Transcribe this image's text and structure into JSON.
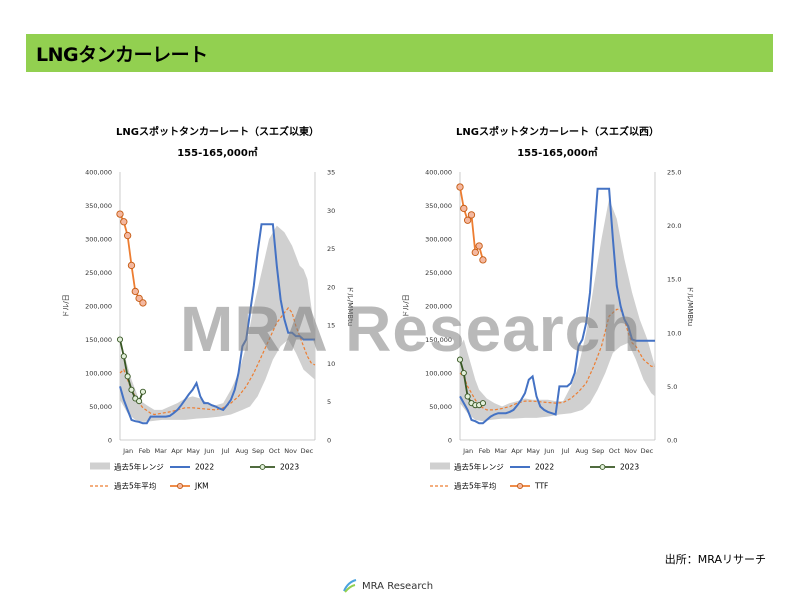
{
  "page": {
    "title": "LNGタンカーレート",
    "source": "出所：MRAリサーチ",
    "watermark": "MRA Research",
    "footer_logo_text": "MRA Research",
    "accent_color": "#92d050"
  },
  "chart_data": [
    {
      "id": "east",
      "type": "line",
      "title": "LNGスポットタンカーレート（スエズ以東）",
      "subtitle": "155-165,000㎥",
      "ylabel": "ドル/日",
      "y2label": "ドル/MMBtu",
      "ylim": [
        0,
        400000
      ],
      "y2lim": [
        0,
        35
      ],
      "yticks": [
        "0",
        "50,000",
        "100,000",
        "150,000",
        "200,000",
        "250,000",
        "300,000",
        "350,000",
        "400,000"
      ],
      "y2ticks": [
        "0",
        "5",
        "10",
        "15",
        "20",
        "25",
        "30",
        "35"
      ],
      "x_labels": [
        "Jan",
        "Feb",
        "Mar",
        "Apr",
        "May",
        "Jun",
        "Jul",
        "Aug",
        "Sep",
        "Oct",
        "Nov",
        "Dec"
      ],
      "week_range": [
        1,
        52
      ],
      "range_low": [
        [
          1,
          60000
        ],
        [
          3,
          40000
        ],
        [
          5,
          30000
        ],
        [
          7,
          27000
        ],
        [
          9,
          28000
        ],
        [
          12,
          30000
        ],
        [
          15,
          30000
        ],
        [
          18,
          30000
        ],
        [
          21,
          32000
        ],
        [
          24,
          33000
        ],
        [
          27,
          35000
        ],
        [
          30,
          38000
        ],
        [
          33,
          45000
        ],
        [
          35,
          50000
        ],
        [
          37,
          65000
        ],
        [
          39,
          90000
        ],
        [
          41,
          120000
        ],
        [
          43,
          140000
        ],
        [
          45,
          150000
        ],
        [
          47,
          130000
        ],
        [
          49,
          105000
        ],
        [
          51,
          95000
        ],
        [
          52,
          90000
        ]
      ],
      "range_high": [
        [
          1,
          120000
        ],
        [
          2,
          130000
        ],
        [
          3,
          110000
        ],
        [
          4,
          90000
        ],
        [
          5,
          75000
        ],
        [
          6,
          60000
        ],
        [
          8,
          52000
        ],
        [
          10,
          45000
        ],
        [
          12,
          45000
        ],
        [
          14,
          50000
        ],
        [
          16,
          55000
        ],
        [
          18,
          62000
        ],
        [
          20,
          65000
        ],
        [
          22,
          62000
        ],
        [
          24,
          55000
        ],
        [
          26,
          52000
        ],
        [
          28,
          55000
        ],
        [
          30,
          75000
        ],
        [
          32,
          100000
        ],
        [
          34,
          140000
        ],
        [
          36,
          200000
        ],
        [
          38,
          250000
        ],
        [
          40,
          300000
        ],
        [
          42,
          320000
        ],
        [
          44,
          310000
        ],
        [
          46,
          290000
        ],
        [
          48,
          260000
        ],
        [
          49,
          255000
        ],
        [
          50,
          240000
        ],
        [
          51,
          200000
        ],
        [
          52,
          160000
        ]
      ],
      "avg": [
        [
          1,
          100000
        ],
        [
          2,
          105000
        ],
        [
          3,
          90000
        ],
        [
          4,
          75000
        ],
        [
          5,
          65000
        ],
        [
          6,
          55000
        ],
        [
          7,
          48000
        ],
        [
          8,
          44000
        ],
        [
          9,
          40000
        ],
        [
          10,
          38000
        ],
        [
          12,
          40000
        ],
        [
          14,
          42000
        ],
        [
          16,
          45000
        ],
        [
          18,
          48000
        ],
        [
          20,
          48000
        ],
        [
          22,
          47000
        ],
        [
          24,
          46000
        ],
        [
          26,
          45000
        ],
        [
          28,
          48000
        ],
        [
          30,
          55000
        ],
        [
          32,
          65000
        ],
        [
          34,
          80000
        ],
        [
          36,
          100000
        ],
        [
          38,
          125000
        ],
        [
          40,
          150000
        ],
        [
          42,
          175000
        ],
        [
          44,
          190000
        ],
        [
          45,
          197000
        ],
        [
          46,
          190000
        ],
        [
          47,
          170000
        ],
        [
          48,
          155000
        ],
        [
          49,
          140000
        ],
        [
          50,
          125000
        ],
        [
          51,
          115000
        ],
        [
          52,
          112000
        ]
      ],
      "series_2022": [
        [
          1,
          80000
        ],
        [
          2,
          60000
        ],
        [
          3,
          45000
        ],
        [
          4,
          30000
        ],
        [
          5,
          28000
        ],
        [
          6,
          27000
        ],
        [
          7,
          25000
        ],
        [
          8,
          25000
        ],
        [
          9,
          35000
        ],
        [
          10,
          35000
        ],
        [
          11,
          35000
        ],
        [
          12,
          35000
        ],
        [
          13,
          35000
        ],
        [
          14,
          36000
        ],
        [
          15,
          40000
        ],
        [
          16,
          45000
        ],
        [
          17,
          52000
        ],
        [
          18,
          60000
        ],
        [
          19,
          68000
        ],
        [
          20,
          75000
        ],
        [
          21,
          85000
        ],
        [
          22,
          65000
        ],
        [
          23,
          55000
        ],
        [
          24,
          55000
        ],
        [
          25,
          52000
        ],
        [
          26,
          50000
        ],
        [
          27,
          47000
        ],
        [
          28,
          45000
        ],
        [
          29,
          52000
        ],
        [
          30,
          60000
        ],
        [
          31,
          75000
        ],
        [
          32,
          100000
        ],
        [
          33,
          140000
        ],
        [
          34,
          150000
        ],
        [
          35,
          190000
        ],
        [
          36,
          230000
        ],
        [
          37,
          280000
        ],
        [
          38,
          322000
        ],
        [
          39,
          322000
        ],
        [
          40,
          322000
        ],
        [
          41,
          322000
        ],
        [
          42,
          260000
        ],
        [
          43,
          210000
        ],
        [
          44,
          180000
        ],
        [
          45,
          160000
        ],
        [
          46,
          160000
        ],
        [
          47,
          155000
        ],
        [
          48,
          155000
        ],
        [
          49,
          150000
        ],
        [
          50,
          150000
        ],
        [
          51,
          150000
        ],
        [
          52,
          150000
        ]
      ],
      "series_2023": [
        [
          1,
          150000
        ],
        [
          2,
          125000
        ],
        [
          3,
          95000
        ],
        [
          4,
          75000
        ],
        [
          5,
          62000
        ],
        [
          6,
          58000
        ],
        [
          7,
          72000
        ]
      ],
      "price_series": {
        "name": "JKM",
        "values": [
          [
            1,
            29.5
          ],
          [
            2,
            28.5
          ],
          [
            3,
            26.7
          ],
          [
            4,
            22.8
          ],
          [
            5,
            19.4
          ],
          [
            6,
            18.5
          ],
          [
            7,
            17.9
          ]
        ]
      },
      "legend": [
        "過去5年レンジ",
        "2022",
        "2023",
        "過去5年平均",
        "JKM"
      ]
    },
    {
      "id": "west",
      "type": "line",
      "title": "LNGスポットタンカーレート（スエズ以西）",
      "subtitle": "155-165,000㎥",
      "ylabel": "ドル/日",
      "y2label": "ドル/MMBtu",
      "ylim": [
        0,
        400000
      ],
      "y2lim": [
        0,
        25
      ],
      "yticks": [
        "0",
        "50,000",
        "100,000",
        "150,000",
        "200,000",
        "250,000",
        "300,000",
        "350,000",
        "400,000"
      ],
      "y2ticks": [
        "0.0",
        "5.0",
        "10.0",
        "15.0",
        "20.0",
        "25.0"
      ],
      "x_labels": [
        "Jan",
        "Feb",
        "Mar",
        "Apr",
        "May",
        "Jun",
        "Jul",
        "Aug",
        "Sep",
        "Oct",
        "Nov",
        "Dec"
      ],
      "week_range": [
        1,
        52
      ],
      "range_low": [
        [
          1,
          55000
        ],
        [
          3,
          40000
        ],
        [
          5,
          30000
        ],
        [
          7,
          28000
        ],
        [
          9,
          30000
        ],
        [
          12,
          32000
        ],
        [
          15,
          32000
        ],
        [
          18,
          33000
        ],
        [
          21,
          33000
        ],
        [
          24,
          35000
        ],
        [
          27,
          38000
        ],
        [
          30,
          40000
        ],
        [
          33,
          45000
        ],
        [
          35,
          55000
        ],
        [
          37,
          75000
        ],
        [
          39,
          100000
        ],
        [
          41,
          130000
        ],
        [
          43,
          140000
        ],
        [
          45,
          145000
        ],
        [
          47,
          120000
        ],
        [
          49,
          90000
        ],
        [
          51,
          70000
        ],
        [
          52,
          65000
        ]
      ],
      "range_high": [
        [
          1,
          140000
        ],
        [
          2,
          150000
        ],
        [
          3,
          130000
        ],
        [
          4,
          110000
        ],
        [
          5,
          90000
        ],
        [
          6,
          75000
        ],
        [
          8,
          62000
        ],
        [
          10,
          55000
        ],
        [
          12,
          50000
        ],
        [
          14,
          55000
        ],
        [
          16,
          58000
        ],
        [
          18,
          62000
        ],
        [
          20,
          60000
        ],
        [
          22,
          60000
        ],
        [
          24,
          60000
        ],
        [
          26,
          58000
        ],
        [
          28,
          58000
        ],
        [
          30,
          80000
        ],
        [
          32,
          110000
        ],
        [
          34,
          160000
        ],
        [
          36,
          230000
        ],
        [
          38,
          300000
        ],
        [
          40,
          360000
        ],
        [
          42,
          330000
        ],
        [
          44,
          270000
        ],
        [
          46,
          220000
        ],
        [
          48,
          180000
        ],
        [
          50,
          150000
        ],
        [
          52,
          110000
        ]
      ],
      "avg": [
        [
          1,
          100000
        ],
        [
          2,
          95000
        ],
        [
          3,
          80000
        ],
        [
          4,
          70000
        ],
        [
          5,
          60000
        ],
        [
          6,
          52000
        ],
        [
          7,
          48000
        ],
        [
          8,
          45000
        ],
        [
          10,
          45000
        ],
        [
          12,
          47000
        ],
        [
          14,
          50000
        ],
        [
          16,
          55000
        ],
        [
          18,
          58000
        ],
        [
          20,
          58000
        ],
        [
          22,
          57000
        ],
        [
          24,
          56000
        ],
        [
          26,
          55000
        ],
        [
          28,
          56000
        ],
        [
          30,
          62000
        ],
        [
          32,
          72000
        ],
        [
          34,
          85000
        ],
        [
          36,
          110000
        ],
        [
          38,
          140000
        ],
        [
          40,
          185000
        ],
        [
          42,
          195000
        ],
        [
          43,
          195000
        ],
        [
          44,
          180000
        ],
        [
          45,
          160000
        ],
        [
          46,
          145000
        ],
        [
          47,
          140000
        ],
        [
          48,
          130000
        ],
        [
          49,
          120000
        ],
        [
          50,
          115000
        ],
        [
          51,
          110000
        ],
        [
          52,
          110000
        ]
      ],
      "series_2022": [
        [
          1,
          65000
        ],
        [
          2,
          55000
        ],
        [
          3,
          45000
        ],
        [
          4,
          30000
        ],
        [
          5,
          28000
        ],
        [
          6,
          25000
        ],
        [
          7,
          25000
        ],
        [
          8,
          30000
        ],
        [
          9,
          35000
        ],
        [
          10,
          38000
        ],
        [
          11,
          40000
        ],
        [
          12,
          40000
        ],
        [
          13,
          40000
        ],
        [
          14,
          42000
        ],
        [
          15,
          45000
        ],
        [
          16,
          52000
        ],
        [
          17,
          60000
        ],
        [
          18,
          70000
        ],
        [
          19,
          90000
        ],
        [
          20,
          95000
        ],
        [
          21,
          65000
        ],
        [
          22,
          50000
        ],
        [
          23,
          45000
        ],
        [
          24,
          42000
        ],
        [
          25,
          40000
        ],
        [
          26,
          38000
        ],
        [
          27,
          80000
        ],
        [
          28,
          80000
        ],
        [
          29,
          80000
        ],
        [
          30,
          85000
        ],
        [
          31,
          100000
        ],
        [
          32,
          140000
        ],
        [
          33,
          150000
        ],
        [
          34,
          175000
        ],
        [
          35,
          220000
        ],
        [
          36,
          300000
        ],
        [
          37,
          375000
        ],
        [
          38,
          375000
        ],
        [
          39,
          375000
        ],
        [
          40,
          375000
        ],
        [
          41,
          300000
        ],
        [
          42,
          230000
        ],
        [
          43,
          200000
        ],
        [
          44,
          180000
        ],
        [
          45,
          170000
        ],
        [
          46,
          150000
        ],
        [
          47,
          148000
        ],
        [
          48,
          148000
        ],
        [
          49,
          148000
        ],
        [
          50,
          148000
        ],
        [
          51,
          148000
        ],
        [
          52,
          148000
        ]
      ],
      "series_2023": [
        [
          1,
          120000
        ],
        [
          2,
          100000
        ],
        [
          3,
          65000
        ],
        [
          4,
          55000
        ],
        [
          5,
          52000
        ],
        [
          6,
          52000
        ],
        [
          7,
          55000
        ]
      ],
      "price_series": {
        "name": "TTF",
        "values": [
          [
            1,
            23.6
          ],
          [
            2,
            21.6
          ],
          [
            3,
            20.5
          ],
          [
            4,
            21.0
          ],
          [
            5,
            17.5
          ],
          [
            6,
            18.1
          ],
          [
            7,
            16.8
          ]
        ]
      },
      "legend": [
        "過去5年レンジ",
        "2022",
        "2023",
        "過去5年平均",
        "TTF"
      ]
    }
  ]
}
